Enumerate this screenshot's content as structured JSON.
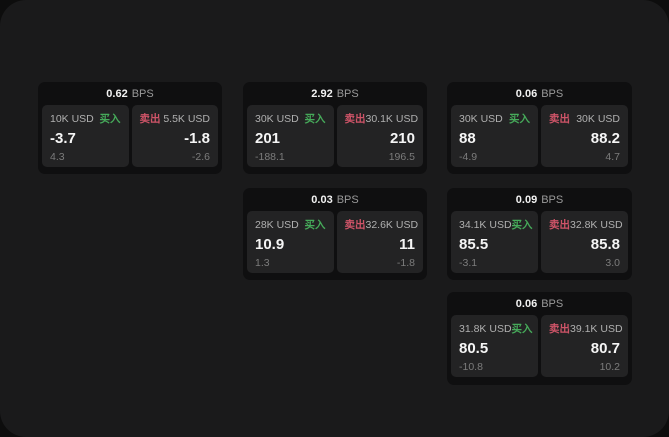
{
  "labels": {
    "bps_unit": "BPS",
    "buy": "买入",
    "sell": "卖出"
  },
  "colors": {
    "buy_green": "#46aa5a",
    "sell_red": "#cf5468",
    "window_bg": "#1a1a1b",
    "card_bg": "#0f0f10",
    "panel_bg": "#232324"
  },
  "cards": [
    {
      "bps": "0.62",
      "buy": {
        "amount": "10K USD",
        "price": "-3.7",
        "change": "4.3"
      },
      "sell": {
        "amount": "5.5K USD",
        "price": "-1.8",
        "change": "-2.6"
      }
    },
    {
      "bps": "2.92",
      "buy": {
        "amount": "30K USD",
        "price": "201",
        "change": "-188.1"
      },
      "sell": {
        "amount": "30.1K USD",
        "price": "210",
        "change": "196.5"
      }
    },
    {
      "bps": "0.06",
      "buy": {
        "amount": "30K USD",
        "price": "88",
        "change": "-4.9"
      },
      "sell": {
        "amount": "30K USD",
        "price": "88.2",
        "change": "4.7"
      }
    },
    {
      "bps": "0.03",
      "buy": {
        "amount": "28K USD",
        "price": "10.9",
        "change": "1.3"
      },
      "sell": {
        "amount": "32.6K USD",
        "price": "11",
        "change": "-1.8"
      }
    },
    {
      "bps": "0.09",
      "buy": {
        "amount": "34.1K USD",
        "price": "85.5",
        "change": "-3.1"
      },
      "sell": {
        "amount": "32.8K USD",
        "price": "85.8",
        "change": "3.0"
      }
    },
    {
      "bps": "0.06",
      "buy": {
        "amount": "31.8K USD",
        "price": "80.5",
        "change": "-10.8"
      },
      "sell": {
        "amount": "39.1K USD",
        "price": "80.7",
        "change": "10.2"
      }
    }
  ]
}
